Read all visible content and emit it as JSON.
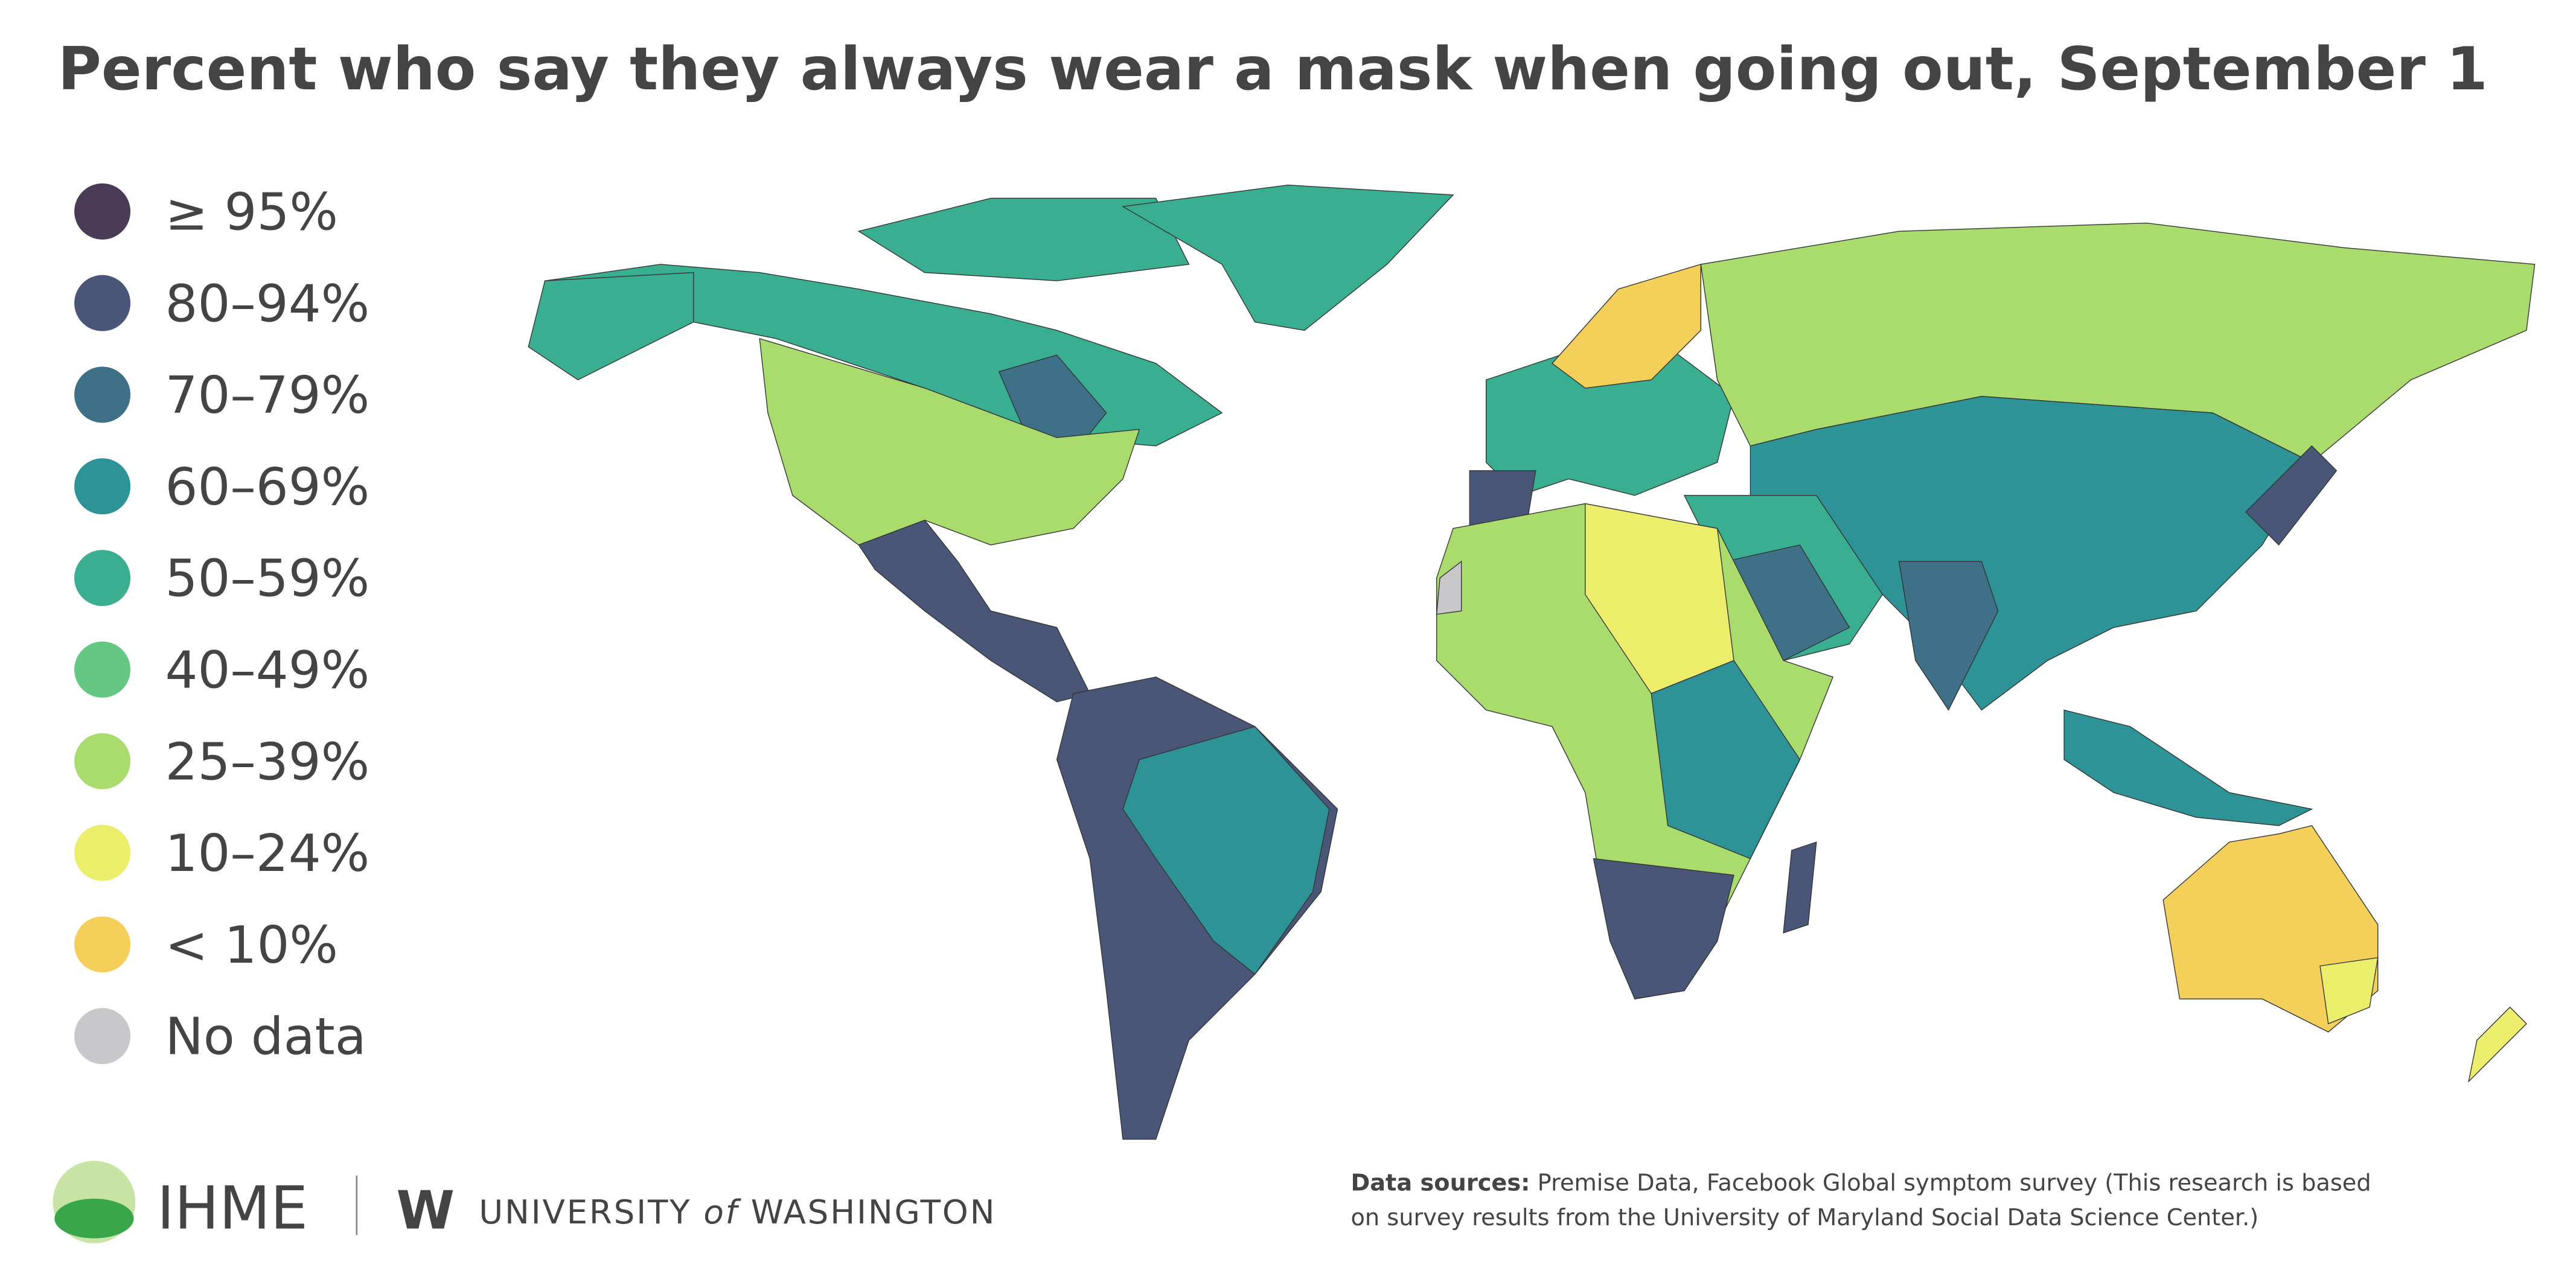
{
  "title": "Percent who say they always wear a mask when going out, September 1",
  "legend": [
    {
      "label": "≥ 95%",
      "color": "#4a3b57"
    },
    {
      "label": "80–94%",
      "color": "#4a5677"
    },
    {
      "label": "70–79%",
      "color": "#3e7188"
    },
    {
      "label": "60–69%",
      "color": "#2e9396"
    },
    {
      "label": "50–59%",
      "color": "#3aae91"
    },
    {
      "label": "40–49%",
      "color": "#64c783"
    },
    {
      "label": "25–39%",
      "color": "#a9dc6c"
    },
    {
      "label": "10–24%",
      "color": "#eced6a"
    },
    {
      "label": "< 10%",
      "color": "#f4d05a"
    },
    {
      "label": "No data",
      "color": "#c8c8cb"
    }
  ],
  "footer": {
    "ihme": "IHME",
    "uw_mark": "W",
    "uw_pre": "UNIVERSITY",
    "uw_of": "of",
    "uw_post": "WASHINGTON",
    "sources_label": "Data sources:",
    "sources_lines": [
      "Premise Data, Facebook Global symptom survey (This research is based",
      "on survey results from the University of Maryland Social Data Science Center.)"
    ]
  }
}
